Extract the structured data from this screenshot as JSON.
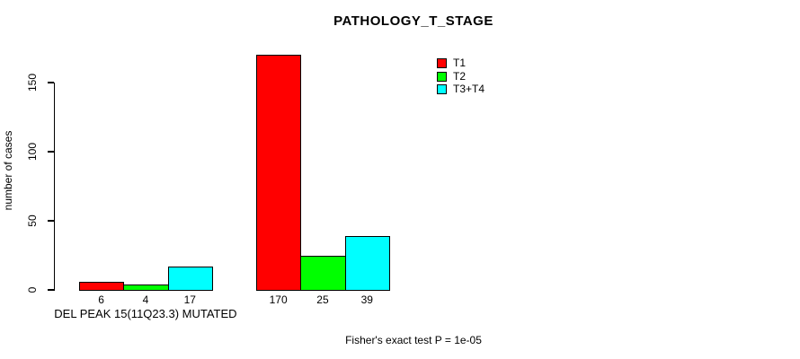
{
  "chart_data": {
    "type": "bar",
    "title": "PATHOLOGY_T_STAGE",
    "ylabel": "number of cases",
    "xlabel": "",
    "ylim": [
      0,
      175
    ],
    "yticks": [
      0,
      50,
      100,
      150
    ],
    "grid": false,
    "legend_position": "top-right",
    "categories": [
      "DEL PEAK 15(11Q23.3) MUTATED",
      ""
    ],
    "series": [
      {
        "name": "T1",
        "color": "#ff0000",
        "values": [
          6,
          170
        ]
      },
      {
        "name": "T2",
        "color": "#00ff00",
        "values": [
          4,
          25
        ]
      },
      {
        "name": "T3+T4",
        "color": "#00ffff",
        "values": [
          17,
          39
        ]
      }
    ],
    "bar_value_labels": [
      [
        6,
        4,
        17
      ],
      [
        170,
        25,
        39
      ]
    ],
    "annotation": "Fisher's exact test P = 1e-05"
  },
  "colors": {
    "axis": "#000000",
    "text": "#000000",
    "background": "#ffffff"
  }
}
